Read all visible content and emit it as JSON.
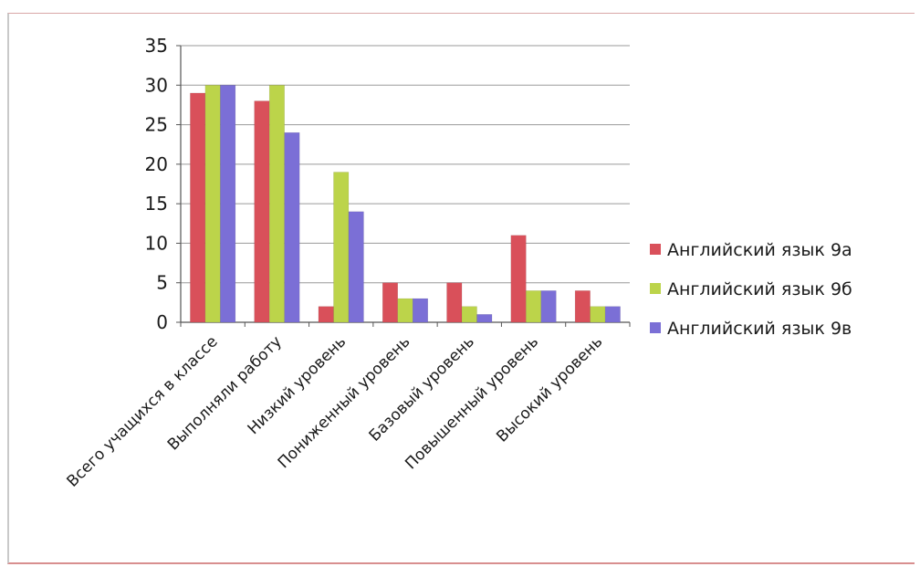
{
  "chart_data": {
    "type": "bar",
    "categories": [
      "Всего учащихся в классе",
      "Выполняли работу",
      "Низкий уровень",
      "Пониженный уровень",
      "Базовый уровень",
      "Повышенный уровень",
      "Высокий уровень"
    ],
    "series": [
      {
        "name": "Английский язык 9а",
        "color": "#d9505a",
        "values": [
          29,
          28,
          2,
          5,
          5,
          11,
          4
        ]
      },
      {
        "name": "Английский язык 9б",
        "color": "#bcd44a",
        "values": [
          30,
          30,
          19,
          3,
          2,
          4,
          2
        ]
      },
      {
        "name": "Английский язык 9в",
        "color": "#7b6fd6",
        "values": [
          30,
          24,
          14,
          3,
          1,
          4,
          2
        ]
      }
    ],
    "yticks": [
      "0",
      "5",
      "10",
      "15",
      "20",
      "25",
      "30",
      "35"
    ],
    "ylim": [
      0,
      35
    ],
    "grid": true,
    "legend_position": "right",
    "title": "",
    "xlabel": "",
    "ylabel": ""
  }
}
